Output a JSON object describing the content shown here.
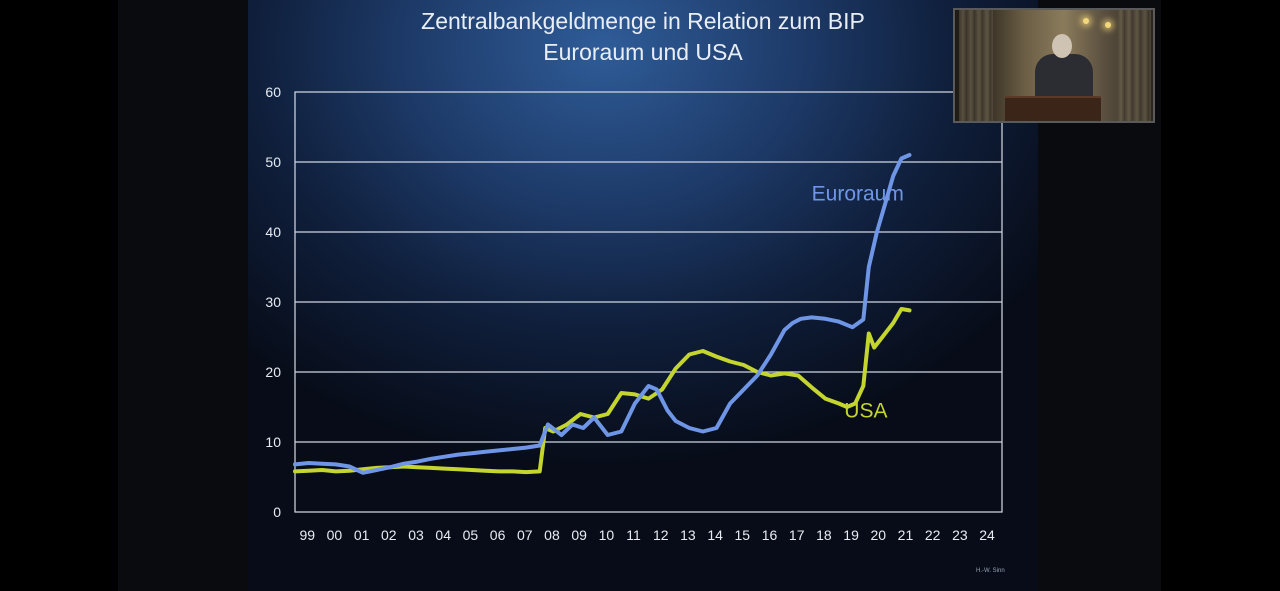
{
  "slide": {
    "title_line1": "Zentralbankgeldmenge in Relation zum BIP",
    "title_line2": "Euroraum und USA",
    "credit": "H.-W. Sinn"
  },
  "webcam": {
    "description_icon": "speaker-video-icon"
  },
  "chart_data": {
    "type": "line",
    "title": "Zentralbankgeldmenge in Relation zum BIP Euroraum und USA",
    "xlabel": "",
    "ylabel": "",
    "ylim": [
      0,
      60
    ],
    "yticks": [
      0,
      10,
      20,
      30,
      40,
      50,
      60
    ],
    "xlim": [
      1999,
      2025
    ],
    "xtick_labels": [
      "99",
      "00",
      "01",
      "02",
      "03",
      "04",
      "05",
      "06",
      "07",
      "08",
      "09",
      "10",
      "11",
      "12",
      "13",
      "14",
      "15",
      "16",
      "17",
      "18",
      "19",
      "20",
      "21",
      "22",
      "23",
      "24"
    ],
    "grid": true,
    "legend": "inline labels",
    "series": [
      {
        "name": "Euroraum",
        "color": "#6f96e6",
        "label_x": 2018.0,
        "label_y": 44.5,
        "x": [
          1999.0,
          1999.5,
          2000.0,
          2000.5,
          2001.0,
          2001.5,
          2002.0,
          2002.5,
          2003.0,
          2003.5,
          2004.0,
          2004.5,
          2005.0,
          2005.5,
          2006.0,
          2006.5,
          2007.0,
          2007.5,
          2008.0,
          2008.3,
          2008.8,
          2009.2,
          2009.6,
          2010.0,
          2010.5,
          2011.0,
          2011.5,
          2012.0,
          2012.3,
          2012.7,
          2013.0,
          2013.5,
          2014.0,
          2014.5,
          2015.0,
          2015.5,
          2016.0,
          2016.5,
          2017.0,
          2017.3,
          2017.6,
          2018.0,
          2018.5,
          2019.0,
          2019.5,
          2019.9,
          2020.1,
          2020.4,
          2020.7,
          2021.0,
          2021.3,
          2021.6
        ],
        "y": [
          6.8,
          7.0,
          6.9,
          6.8,
          6.5,
          5.6,
          6.0,
          6.4,
          6.9,
          7.2,
          7.6,
          7.9,
          8.2,
          8.4,
          8.6,
          8.8,
          9.0,
          9.2,
          9.5,
          12.5,
          11.0,
          12.5,
          12.0,
          13.5,
          11.0,
          11.5,
          15.5,
          18.0,
          17.5,
          14.5,
          13.0,
          12.0,
          11.5,
          12.0,
          15.5,
          17.5,
          19.5,
          22.5,
          26.0,
          27.0,
          27.6,
          27.8,
          27.6,
          27.2,
          26.4,
          27.5,
          35.0,
          40.0,
          44.0,
          48.0,
          50.5,
          51.0
        ]
      },
      {
        "name": "USA",
        "color": "#c5d52f",
        "label_x": 2019.2,
        "label_y": 13.5,
        "x": [
          1999.0,
          1999.5,
          2000.0,
          2000.5,
          2001.0,
          2001.5,
          2002.0,
          2002.5,
          2003.0,
          2003.5,
          2004.0,
          2004.5,
          2005.0,
          2005.5,
          2006.0,
          2006.5,
          2007.0,
          2007.5,
          2008.0,
          2008.2,
          2008.5,
          2009.0,
          2009.5,
          2010.0,
          2010.5,
          2011.0,
          2011.5,
          2012.0,
          2012.5,
          2013.0,
          2013.5,
          2014.0,
          2014.5,
          2015.0,
          2015.5,
          2016.0,
          2016.5,
          2017.0,
          2017.5,
          2018.0,
          2018.5,
          2019.0,
          2019.3,
          2019.6,
          2019.9,
          2020.1,
          2020.3,
          2020.6,
          2021.0,
          2021.3,
          2021.6
        ],
        "y": [
          5.8,
          5.9,
          6.0,
          5.8,
          5.9,
          6.1,
          6.3,
          6.4,
          6.5,
          6.4,
          6.3,
          6.2,
          6.1,
          6.0,
          5.9,
          5.8,
          5.8,
          5.7,
          5.8,
          12.0,
          11.5,
          12.5,
          14.0,
          13.5,
          14.0,
          17.0,
          16.8,
          16.2,
          17.5,
          20.5,
          22.5,
          23.0,
          22.2,
          21.5,
          21.0,
          20.0,
          19.5,
          19.8,
          19.5,
          17.8,
          16.2,
          15.5,
          15.0,
          15.5,
          18.0,
          25.5,
          23.5,
          25.0,
          27.0,
          29.0,
          28.8
        ]
      }
    ]
  }
}
